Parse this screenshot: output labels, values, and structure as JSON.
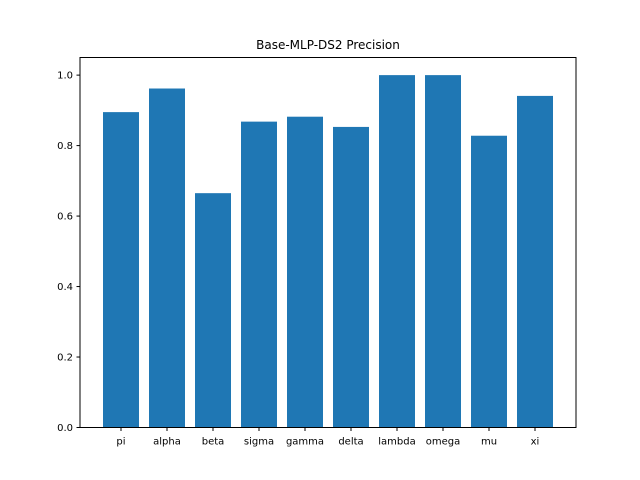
{
  "chart_data": {
    "type": "bar",
    "title": "Base-MLP-DS2 Precision",
    "xlabel": "",
    "ylabel": "",
    "categories": [
      "pi",
      "alpha",
      "beta",
      "sigma",
      "gamma",
      "delta",
      "lambda",
      "omega",
      "mu",
      "xi"
    ],
    "values": [
      0.895,
      0.962,
      0.665,
      0.868,
      0.882,
      0.853,
      1.0,
      1.0,
      0.828,
      0.941
    ],
    "ylim": [
      0,
      1.05
    ],
    "yticks": [
      "0.0",
      "0.2",
      "0.4",
      "0.6",
      "0.8",
      "1.0"
    ],
    "bar_color": "#1f77b4",
    "grid": false,
    "legend": false
  }
}
